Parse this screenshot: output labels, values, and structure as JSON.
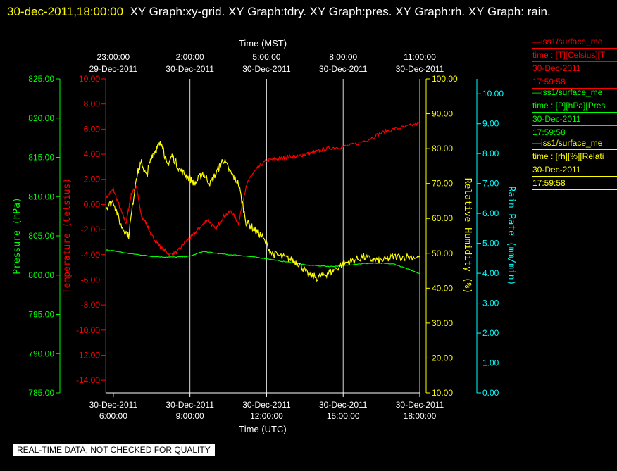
{
  "header": {
    "timestamp": "30-dec-2011,18:00:00",
    "graphs": "XY Graph:xy-grid.  XY Graph:tdry.  XY Graph:pres.  XY Graph:rh.  XY Graph: rain."
  },
  "footer": {
    "notice": "REAL-TIME DATA, NOT CHECKED FOR QUALITY"
  },
  "legend": [
    {
      "line1": "—iss1/surface_me",
      "line2": "time : [T][Celsius][T",
      "line3": "30-Dec-2011",
      "line4": "17:59:58",
      "color": "#ff0000"
    },
    {
      "line1": "—iss1/surface_me",
      "line2": "time : [P][hPa][Pres",
      "line3": "30-Dec-2011",
      "line4": "17:59:58",
      "color": "#00ff00"
    },
    {
      "line1": "—iss1/surface_me",
      "line2": "time : [rh][%][Relati",
      "line3": "30-Dec-2011",
      "line4": "17:59:58",
      "color": "#ffff00"
    }
  ],
  "chart_data": {
    "type": "line",
    "x_label_bottom": "Time (UTC)",
    "x_label_top": "Time (MST)",
    "x_range_hours": [
      5.7,
      18.0
    ],
    "bottom_ticks": [
      {
        "hour": 6,
        "date": "30-Dec-2011",
        "time": "6:00:00"
      },
      {
        "hour": 9,
        "date": "30-Dec-2011",
        "time": "9:00:00"
      },
      {
        "hour": 12,
        "date": "30-Dec-2011",
        "time": "12:00:00"
      },
      {
        "hour": 15,
        "date": "30-Dec-2011",
        "time": "15:00:00"
      },
      {
        "hour": 18,
        "date": "30-Dec-2011",
        "time": "18:00:00"
      }
    ],
    "top_ticks": [
      {
        "hour": 6,
        "time": "23:00:00",
        "date": "29-Dec-2011"
      },
      {
        "hour": 9,
        "time": "2:00:00",
        "date": "30-Dec-2011"
      },
      {
        "hour": 12,
        "time": "5:00:00",
        "date": "30-Dec-2011"
      },
      {
        "hour": 15,
        "time": "8:00:00",
        "date": "30-Dec-2011"
      },
      {
        "hour": 18,
        "time": "11:00:00",
        "date": "30-Dec-2011"
      }
    ],
    "grid_hours": [
      9,
      12,
      15,
      18
    ],
    "axes": {
      "pressure": {
        "label": "Pressure (hPa)",
        "range": [
          785,
          825
        ],
        "ticks": [
          785,
          790,
          795,
          800,
          805,
          810,
          815,
          820,
          825
        ],
        "decimals": 2,
        "color": "#00ff00"
      },
      "temperature": {
        "label": "Temperature (Celsius)",
        "range": [
          -15,
          10
        ],
        "ticks": [
          -14,
          -12,
          -10,
          -8,
          -6,
          -4,
          -2,
          0,
          2,
          4,
          6,
          8,
          10
        ],
        "decimals": 2,
        "color": "#ff0000"
      },
      "humidity": {
        "label": "Relative Humidity (%)",
        "range": [
          10,
          100
        ],
        "ticks": [
          10,
          20,
          30,
          40,
          50,
          60,
          70,
          80,
          90,
          100
        ],
        "decimals": 2,
        "color": "#ffff00"
      },
      "rain": {
        "label": "Rain Rate (mm/min)",
        "range": [
          0,
          10.5
        ],
        "ticks": [
          0,
          1,
          2,
          3,
          4,
          5,
          6,
          7,
          8,
          9,
          10
        ],
        "decimals": 2,
        "color": "#00ffff"
      }
    },
    "series": [
      {
        "name": "T",
        "axis": "temperature",
        "color": "#ff0000",
        "noise": 0.15,
        "x": [
          5.7,
          6.0,
          6.3,
          6.5,
          6.7,
          6.9,
          7.1,
          7.3,
          7.5,
          7.7,
          7.9,
          8.2,
          8.5,
          8.8,
          9.1,
          9.4,
          9.7,
          10.0,
          10.3,
          10.6,
          10.9,
          11.2,
          11.4,
          11.7,
          12.0,
          12.3,
          12.6,
          12.9,
          13.2,
          13.5,
          13.8,
          14.1,
          14.5,
          15.0,
          15.5,
          16.0,
          16.5,
          17.0,
          17.5,
          18.0
        ],
        "y": [
          0.5,
          1.2,
          -0.5,
          -1.5,
          0.8,
          1.5,
          -1.0,
          -1.5,
          -2.5,
          -3.0,
          -3.5,
          -4.0,
          -3.8,
          -3.0,
          -2.5,
          -1.8,
          -1.2,
          -2.0,
          -1.0,
          -0.5,
          -1.5,
          1.5,
          2.3,
          3.0,
          3.5,
          3.6,
          3.7,
          3.8,
          3.8,
          4.0,
          4.1,
          4.3,
          4.5,
          4.6,
          4.8,
          5.2,
          5.7,
          6.0,
          6.2,
          6.5
        ]
      },
      {
        "name": "P",
        "axis": "pressure",
        "color": "#00ff00",
        "noise": 0.05,
        "x": [
          5.7,
          6.0,
          6.5,
          7.0,
          7.5,
          8.0,
          8.5,
          9.0,
          9.5,
          10.0,
          10.5,
          11.0,
          11.5,
          12.0,
          12.5,
          13.0,
          13.5,
          14.0,
          14.5,
          15.0,
          15.5,
          16.0,
          16.5,
          17.0,
          17.5,
          18.0
        ],
        "y": [
          803.2,
          803.1,
          802.8,
          802.6,
          802.4,
          802.3,
          802.3,
          802.4,
          803.0,
          802.8,
          802.6,
          802.5,
          802.3,
          802.1,
          801.8,
          801.6,
          801.3,
          801.2,
          801.1,
          801.2,
          801.4,
          801.5,
          801.5,
          801.4,
          800.8,
          800.2
        ]
      },
      {
        "name": "rh",
        "axis": "humidity",
        "color": "#ffff00",
        "noise": 1.1,
        "x": [
          5.7,
          6.0,
          6.3,
          6.6,
          6.9,
          7.1,
          7.3,
          7.5,
          7.7,
          7.9,
          8.1,
          8.3,
          8.6,
          8.9,
          9.2,
          9.5,
          9.8,
          10.1,
          10.3,
          10.6,
          10.9,
          11.2,
          11.5,
          11.8,
          12.2,
          12.6,
          13.0,
          13.3,
          13.6,
          14.0,
          14.3,
          14.6,
          15.0,
          15.4,
          15.8,
          16.2,
          16.6,
          17.0,
          17.5,
          18.0
        ],
        "y": [
          63,
          65,
          58,
          55,
          72,
          76,
          72,
          78,
          80,
          82,
          75,
          78,
          74,
          72,
          70,
          73,
          70,
          74,
          77,
          73,
          70,
          59,
          57,
          55,
          50,
          49,
          48,
          47,
          44,
          43,
          44,
          45,
          47,
          48,
          49,
          48,
          48,
          49,
          49,
          49
        ]
      }
    ]
  }
}
